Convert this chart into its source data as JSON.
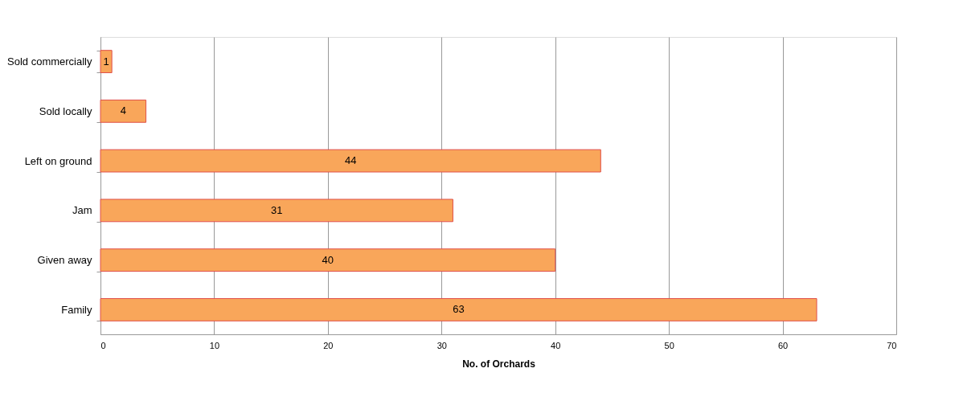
{
  "chart_data": {
    "type": "bar",
    "orientation": "horizontal",
    "xlabel": "No. of Orchards",
    "categories": [
      "Sold commercially",
      "Sold locally",
      "Left on ground",
      "Jam",
      "Given away",
      "Family"
    ],
    "values": [
      1,
      4,
      44,
      31,
      40,
      63
    ],
    "color": "#f9a65a",
    "xlim": [
      0,
      70
    ],
    "xticks": [
      0,
      10,
      20,
      30,
      40,
      50,
      60,
      70
    ],
    "grid": "x",
    "data_labels": true
  }
}
